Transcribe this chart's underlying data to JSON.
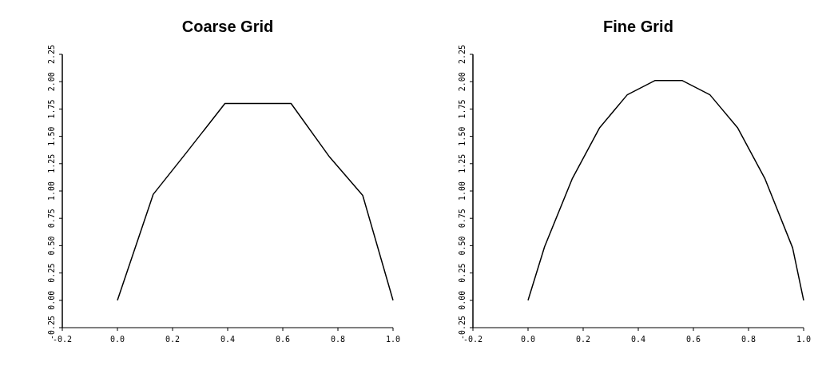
{
  "chart_data": [
    {
      "type": "line",
      "title": "Coarse Grid",
      "x": [
        0,
        0.13,
        0.25,
        0.39,
        0.63,
        0.77,
        0.89,
        1.0
      ],
      "series": [
        {
          "color": "#000000",
          "values": [
            0,
            0.97,
            1.35,
            1.8,
            1.8,
            1.31,
            0.96,
            0
          ]
        }
      ],
      "xlim": [
        -0.2,
        1.0
      ],
      "xticks": [
        {
          "value": -0.2,
          "label": "-0.2"
        },
        {
          "value": 0,
          "label": "0.0"
        },
        {
          "value": 0.2,
          "label": "0.2"
        },
        {
          "value": 0.4,
          "label": "0.4"
        },
        {
          "value": 0.6,
          "label": "0.6"
        },
        {
          "value": 0.8,
          "label": "0.8"
        },
        {
          "value": 1,
          "label": "1.0"
        }
      ],
      "ylim": [
        -0.25,
        2.25
      ],
      "yticks": [
        {
          "value": -0.25,
          "label": "-0.25"
        },
        {
          "value": 0,
          "label": "0.00"
        },
        {
          "value": 0.25,
          "label": "0.25"
        },
        {
          "value": 0.5,
          "label": "0.50"
        },
        {
          "value": 0.75,
          "label": "0.75"
        },
        {
          "value": 1,
          "label": "1.00"
        },
        {
          "value": 1.25,
          "label": "1.25"
        },
        {
          "value": 1.5,
          "label": "1.50"
        },
        {
          "value": 1.75,
          "label": "1.75"
        },
        {
          "value": 2,
          "label": "2.00"
        },
        {
          "value": 2.25,
          "label": "2.25"
        }
      ],
      "grid": false
    },
    {
      "type": "line",
      "title": "Fine Grid",
      "x": [
        0,
        0.06,
        0.16,
        0.26,
        0.36,
        0.46,
        0.56,
        0.66,
        0.76,
        0.86,
        0.96,
        1.0
      ],
      "series": [
        {
          "color": "#000000",
          "values": [
            0,
            0.49,
            1.11,
            1.58,
            1.88,
            2.01,
            2.01,
            1.88,
            1.58,
            1.11,
            0.48,
            0
          ]
        }
      ],
      "xlim": [
        -0.2,
        1.0
      ],
      "xticks": [
        {
          "value": -0.2,
          "label": "-0.2"
        },
        {
          "value": 0,
          "label": "0.0"
        },
        {
          "value": 0.2,
          "label": "0.2"
        },
        {
          "value": 0.4,
          "label": "0.4"
        },
        {
          "value": 0.6,
          "label": "0.6"
        },
        {
          "value": 0.8,
          "label": "0.8"
        },
        {
          "value": 1,
          "label": "1.0"
        }
      ],
      "ylim": [
        -0.25,
        2.25
      ],
      "yticks": [
        {
          "value": -0.25,
          "label": "-0.25"
        },
        {
          "value": 0,
          "label": "0.00"
        },
        {
          "value": 0.25,
          "label": "0.25"
        },
        {
          "value": 0.5,
          "label": "0.50"
        },
        {
          "value": 0.75,
          "label": "0.75"
        },
        {
          "value": 1,
          "label": "1.00"
        },
        {
          "value": 1.25,
          "label": "1.25"
        },
        {
          "value": 1.5,
          "label": "1.50"
        },
        {
          "value": 1.75,
          "label": "1.75"
        },
        {
          "value": 2,
          "label": "2.00"
        },
        {
          "value": 2.25,
          "label": "2.25"
        }
      ],
      "grid": false
    }
  ]
}
